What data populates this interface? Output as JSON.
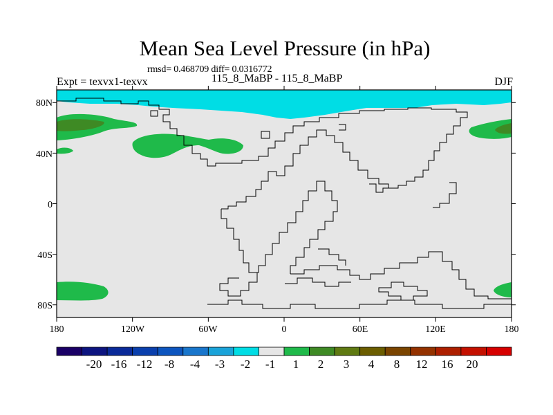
{
  "header": {
    "title": "Mean Sea Level Pressure (in hPa)",
    "stats": "rmsd= 0.468709 diff= 0.0316772",
    "left_label": "Expt = texvx1-texvx",
    "center_label": "115_8_MaBP - 115_8_MaBP",
    "right_label": "DJF"
  },
  "map": {
    "projection": "cylindrical-equidistant",
    "lon_range": [
      -180,
      180
    ],
    "lat_range": [
      -90,
      90
    ],
    "background_fill": "#e6e6e6",
    "coastline_color": "#000000",
    "y_ticks": [
      {
        "lat": 80,
        "label": "80N"
      },
      {
        "lat": 40,
        "label": "40N"
      },
      {
        "lat": 0,
        "label": "0"
      },
      {
        "lat": -40,
        "label": "40S"
      },
      {
        "lat": -80,
        "label": "80S"
      }
    ],
    "x_ticks": [
      {
        "lon": -180,
        "label": "180"
      },
      {
        "lon": -120,
        "label": "120W"
      },
      {
        "lon": -60,
        "label": "60W"
      },
      {
        "lon": 0,
        "label": "0"
      },
      {
        "lon": 60,
        "label": "60E"
      },
      {
        "lon": 120,
        "label": "120E"
      },
      {
        "lon": 180,
        "label": "180"
      }
    ]
  },
  "colorbar": {
    "colors": [
      "#1a0066",
      "#0d1480",
      "#0a2a99",
      "#0a3fad",
      "#0d55bf",
      "#1976cc",
      "#1aa3d9",
      "#00dde5",
      "#e6e6e6",
      "#1fba4a",
      "#3e8a24",
      "#5f7a12",
      "#6b5d00",
      "#7a4400",
      "#943200",
      "#ad1f00",
      "#c41000",
      "#d60000"
    ],
    "labels": [
      "-20",
      "-16",
      "-12",
      "-8",
      "-4",
      "-3",
      "-2",
      "-1",
      "1",
      "2",
      "3",
      "4",
      "8",
      "12",
      "16",
      "20"
    ]
  },
  "anomaly_colors": {
    "negative": "#00dde5",
    "positive_weak": "#1fba4a",
    "positive_strong": "#3e8a24"
  }
}
